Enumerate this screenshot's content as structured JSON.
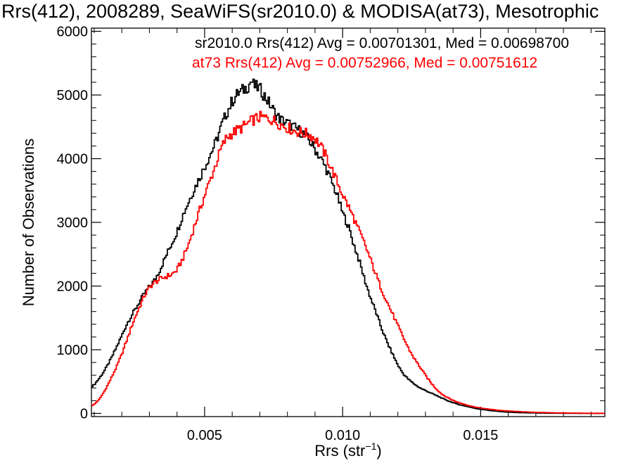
{
  "chart_data": {
    "type": "line",
    "title": "Rrs(412), 2008289, SeaWiFS(sr2010.0) & MODISA(at73), Mesotrophic",
    "xlabel_main": "Rrs (str",
    "xlabel_sup": "−1",
    "xlabel_tail": ")",
    "ylabel": "Number of Observations",
    "xlim": [
      0.0009,
      0.0195
    ],
    "ylim": [
      -50,
      6050
    ],
    "x_ticks": [
      {
        "value": 0.005,
        "label": "0.005"
      },
      {
        "value": 0.01,
        "label": "0.010"
      },
      {
        "value": 0.015,
        "label": "0.015"
      }
    ],
    "y_ticks": [
      {
        "value": 0,
        "label": "0"
      },
      {
        "value": 1000,
        "label": "1000"
      },
      {
        "value": 2000,
        "label": "2000"
      },
      {
        "value": 3000,
        "label": "3000"
      },
      {
        "value": 4000,
        "label": "4000"
      },
      {
        "value": 5000,
        "label": "5000"
      },
      {
        "value": 6000,
        "label": "6000"
      }
    ],
    "series": [
      {
        "name": "sr2010.0",
        "legend": "sr2010.0 Rrs(412) Avg = 0.00701301, Med = 0.00698700",
        "color": "#000000",
        "points": [
          [
            0.0009,
            420
          ],
          [
            0.001,
            450
          ],
          [
            0.0012,
            560
          ],
          [
            0.0014,
            690
          ],
          [
            0.0016,
            850
          ],
          [
            0.0018,
            1030
          ],
          [
            0.002,
            1220
          ],
          [
            0.0022,
            1420
          ],
          [
            0.0024,
            1570
          ],
          [
            0.0026,
            1720
          ],
          [
            0.0028,
            1870
          ],
          [
            0.003,
            1990
          ],
          [
            0.0032,
            2100
          ],
          [
            0.0034,
            2270
          ],
          [
            0.0036,
            2470
          ],
          [
            0.0038,
            2660
          ],
          [
            0.004,
            2850
          ],
          [
            0.0042,
            3100
          ],
          [
            0.0044,
            3300
          ],
          [
            0.0046,
            3500
          ],
          [
            0.0048,
            3680
          ],
          [
            0.005,
            3870
          ],
          [
            0.0052,
            4060
          ],
          [
            0.0054,
            4250
          ],
          [
            0.0056,
            4500
          ],
          [
            0.0058,
            4720
          ],
          [
            0.006,
            4900
          ],
          [
            0.0062,
            5020
          ],
          [
            0.0064,
            5080
          ],
          [
            0.0066,
            5150
          ],
          [
            0.0067,
            5230
          ],
          [
            0.0068,
            5140
          ],
          [
            0.007,
            5100
          ],
          [
            0.0072,
            4970
          ],
          [
            0.0074,
            4830
          ],
          [
            0.0076,
            4680
          ],
          [
            0.0078,
            4600
          ],
          [
            0.008,
            4560
          ],
          [
            0.0082,
            4500
          ],
          [
            0.0084,
            4450
          ],
          [
            0.0086,
            4390
          ],
          [
            0.0088,
            4280
          ],
          [
            0.009,
            4150
          ],
          [
            0.0092,
            4010
          ],
          [
            0.0094,
            3850
          ],
          [
            0.0096,
            3640
          ],
          [
            0.0098,
            3430
          ],
          [
            0.01,
            3150
          ],
          [
            0.0102,
            2950
          ],
          [
            0.0104,
            2660
          ],
          [
            0.0106,
            2400
          ],
          [
            0.0108,
            2100
          ],
          [
            0.011,
            1830
          ],
          [
            0.0112,
            1600
          ],
          [
            0.0114,
            1350
          ],
          [
            0.0116,
            1130
          ],
          [
            0.0118,
            940
          ],
          [
            0.012,
            760
          ],
          [
            0.0122,
            620
          ],
          [
            0.0124,
            530
          ],
          [
            0.0126,
            460
          ],
          [
            0.0128,
            400
          ],
          [
            0.013,
            360
          ],
          [
            0.0132,
            320
          ],
          [
            0.0134,
            280
          ],
          [
            0.0136,
            240
          ],
          [
            0.0138,
            200
          ],
          [
            0.014,
            170
          ],
          [
            0.0142,
            140
          ],
          [
            0.0144,
            120
          ],
          [
            0.0146,
            100
          ],
          [
            0.0148,
            80
          ],
          [
            0.015,
            65
          ],
          [
            0.0152,
            55
          ],
          [
            0.0154,
            42
          ],
          [
            0.0156,
            34
          ],
          [
            0.0158,
            26
          ],
          [
            0.016,
            20
          ],
          [
            0.0164,
            12
          ],
          [
            0.0168,
            8
          ],
          [
            0.0172,
            5
          ],
          [
            0.0176,
            3
          ],
          [
            0.018,
            2
          ],
          [
            0.0186,
            1
          ],
          [
            0.0195,
            0
          ]
        ]
      },
      {
        "name": "at73",
        "legend": "at73 Rrs(412) Avg = 0.00752966, Med = 0.00751612",
        "color": "#ff0000",
        "points": [
          [
            0.0009,
            120
          ],
          [
            0.001,
            140
          ],
          [
            0.0012,
            230
          ],
          [
            0.0014,
            370
          ],
          [
            0.0016,
            540
          ],
          [
            0.0018,
            720
          ],
          [
            0.002,
            930
          ],
          [
            0.0022,
            1170
          ],
          [
            0.0024,
            1420
          ],
          [
            0.0026,
            1630
          ],
          [
            0.0028,
            1830
          ],
          [
            0.003,
            1980
          ],
          [
            0.0032,
            2060
          ],
          [
            0.0034,
            2110
          ],
          [
            0.0036,
            2150
          ],
          [
            0.0038,
            2180
          ],
          [
            0.004,
            2250
          ],
          [
            0.0042,
            2420
          ],
          [
            0.0044,
            2630
          ],
          [
            0.0046,
            2900
          ],
          [
            0.0048,
            3160
          ],
          [
            0.005,
            3420
          ],
          [
            0.0052,
            3660
          ],
          [
            0.0054,
            3900
          ],
          [
            0.0056,
            4160
          ],
          [
            0.0058,
            4330
          ],
          [
            0.006,
            4400
          ],
          [
            0.0062,
            4450
          ],
          [
            0.0064,
            4500
          ],
          [
            0.0066,
            4560
          ],
          [
            0.0068,
            4620
          ],
          [
            0.007,
            4650
          ],
          [
            0.0072,
            4640
          ],
          [
            0.0074,
            4620
          ],
          [
            0.0076,
            4580
          ],
          [
            0.0078,
            4530
          ],
          [
            0.008,
            4490
          ],
          [
            0.0082,
            4450
          ],
          [
            0.0084,
            4420
          ],
          [
            0.0086,
            4400
          ],
          [
            0.0088,
            4380
          ],
          [
            0.009,
            4320
          ],
          [
            0.0092,
            4200
          ],
          [
            0.0094,
            4040
          ],
          [
            0.0096,
            3840
          ],
          [
            0.0098,
            3640
          ],
          [
            0.01,
            3440
          ],
          [
            0.0102,
            3260
          ],
          [
            0.0104,
            3070
          ],
          [
            0.0106,
            2860
          ],
          [
            0.0108,
            2660
          ],
          [
            0.011,
            2430
          ],
          [
            0.0112,
            2190
          ],
          [
            0.0114,
            1960
          ],
          [
            0.0116,
            1760
          ],
          [
            0.0118,
            1570
          ],
          [
            0.012,
            1380
          ],
          [
            0.0122,
            1190
          ],
          [
            0.0124,
            1010
          ],
          [
            0.0126,
            860
          ],
          [
            0.0128,
            730
          ],
          [
            0.013,
            600
          ],
          [
            0.0132,
            480
          ],
          [
            0.0134,
            380
          ],
          [
            0.0136,
            300
          ],
          [
            0.0138,
            250
          ],
          [
            0.014,
            205
          ],
          [
            0.0142,
            170
          ],
          [
            0.0144,
            145
          ],
          [
            0.0146,
            120
          ],
          [
            0.0148,
            100
          ],
          [
            0.015,
            85
          ],
          [
            0.0152,
            72
          ],
          [
            0.0154,
            62
          ],
          [
            0.0156,
            52
          ],
          [
            0.0158,
            44
          ],
          [
            0.016,
            38
          ],
          [
            0.0164,
            28
          ],
          [
            0.0168,
            20
          ],
          [
            0.0172,
            14
          ],
          [
            0.0176,
            10
          ],
          [
            0.018,
            7
          ],
          [
            0.0186,
            4
          ],
          [
            0.0195,
            1
          ]
        ]
      }
    ],
    "grid": false,
    "legend_position": "top-right"
  }
}
